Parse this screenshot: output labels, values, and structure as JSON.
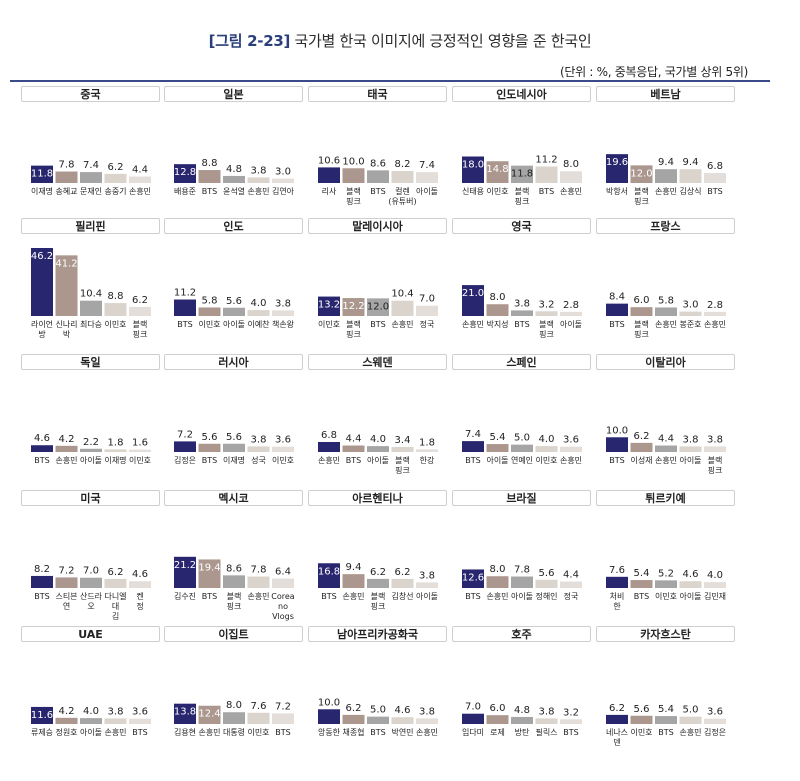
{
  "header": {
    "figure_label": "[그림 2-23]",
    "title": "국가별 한국 이미지에 긍정적인 영향을 준 한국인",
    "unit_note": "(단위 : %, 중복응답, 국가별 상위 5위)"
  },
  "colors": {
    "rank1": "#28266e",
    "rank2": "#ab978d",
    "rank3": "#a5a5a5",
    "rank4": "#dad4cd",
    "rank5": "#e3deda",
    "rule": "#3a4a8a"
  },
  "chart_data": [
    {
      "type": "bar",
      "title": "중국",
      "categories": [
        "이재명",
        "송혜교",
        "문재인",
        "송중기",
        "손흥민"
      ],
      "values": [
        11.8,
        7.8,
        7.4,
        6.2,
        4.4
      ]
    },
    {
      "type": "bar",
      "title": "일본",
      "categories": [
        "배용준",
        "BTS",
        "윤석열",
        "손흥민",
        "김연아"
      ],
      "values": [
        12.8,
        8.8,
        4.8,
        3.8,
        3.0
      ]
    },
    {
      "type": "bar",
      "title": "태국",
      "categories": [
        "리사",
        "블랙 핑크",
        "BTS",
        "컬렌 (유튜버)",
        "아이돌"
      ],
      "values": [
        10.6,
        10.0,
        8.6,
        8.2,
        7.4
      ]
    },
    {
      "type": "bar",
      "title": "인도네시아",
      "categories": [
        "신태용",
        "이민호",
        "블랙 핑크",
        "BTS",
        "손흥민"
      ],
      "values": [
        18.0,
        14.8,
        11.8,
        11.2,
        8.0
      ]
    },
    {
      "type": "bar",
      "title": "베트남",
      "categories": [
        "박항서",
        "블랙 핑크",
        "손흥민",
        "김상식",
        "BTS"
      ],
      "values": [
        19.6,
        12.0,
        9.4,
        9.4,
        6.8
      ]
    },
    {
      "type": "bar",
      "title": "필리핀",
      "categories": [
        "라이언 방",
        "신나리 박",
        "최다승",
        "이민호",
        "블랙 핑크"
      ],
      "values": [
        46.2,
        41.2,
        10.4,
        8.8,
        6.2
      ]
    },
    {
      "type": "bar",
      "title": "인도",
      "categories": [
        "BTS",
        "이민호",
        "아이돌",
        "이예찬",
        "책손왕"
      ],
      "values": [
        11.2,
        5.8,
        5.6,
        4.0,
        3.8
      ]
    },
    {
      "type": "bar",
      "title": "말레이시아",
      "categories": [
        "이민호",
        "블랙 핑크",
        "BTS",
        "손흥민",
        "정국"
      ],
      "values": [
        13.2,
        12.2,
        12.0,
        10.4,
        7.0
      ]
    },
    {
      "type": "bar",
      "title": "영국",
      "categories": [
        "손흥민",
        "박지성",
        "BTS",
        "블랙 핑크",
        "아이돌"
      ],
      "values": [
        21.0,
        8.0,
        3.8,
        3.2,
        2.8
      ]
    },
    {
      "type": "bar",
      "title": "프랑스",
      "categories": [
        "BTS",
        "블랙 핑크",
        "손흥민",
        "봉준호",
        "손흥민"
      ],
      "values": [
        8.4,
        6.0,
        5.8,
        3.0,
        2.8
      ]
    },
    {
      "type": "bar",
      "title": "독일",
      "categories": [
        "BTS",
        "손흥민",
        "아이돌",
        "이재명",
        "이민호"
      ],
      "values": [
        4.6,
        4.2,
        2.2,
        1.8,
        1.6
      ]
    },
    {
      "type": "bar",
      "title": "러시아",
      "categories": [
        "김정은",
        "BTS",
        "이재명",
        "성국",
        "이민호"
      ],
      "values": [
        7.2,
        5.6,
        5.6,
        3.8,
        3.6
      ]
    },
    {
      "type": "bar",
      "title": "스웨덴",
      "categories": [
        "손흥민",
        "BTS",
        "아이돌",
        "블랙 핑크",
        "한강"
      ],
      "values": [
        6.8,
        4.4,
        4.0,
        3.4,
        1.8
      ]
    },
    {
      "type": "bar",
      "title": "스페인",
      "categories": [
        "BTS",
        "아이돌",
        "연예인",
        "이민호",
        "손흥민"
      ],
      "values": [
        7.4,
        5.4,
        5.0,
        4.0,
        3.6
      ]
    },
    {
      "type": "bar",
      "title": "이탈리아",
      "categories": [
        "BTS",
        "이성재",
        "손흥민",
        "아이돌",
        "블랙 핑크"
      ],
      "values": [
        10.0,
        6.2,
        4.4,
        3.8,
        3.8
      ]
    },
    {
      "type": "bar",
      "title": "미국",
      "categories": [
        "BTS",
        "스티븐 연",
        "산드라 오",
        "다니엘 대 김",
        "켄 정"
      ],
      "values": [
        8.2,
        7.2,
        7.0,
        6.2,
        4.6
      ]
    },
    {
      "type": "bar",
      "title": "멕시코",
      "categories": [
        "김수진",
        "BTS",
        "블랙 핑크",
        "손흥민",
        "Corea no Vlogs"
      ],
      "values": [
        21.2,
        19.4,
        8.6,
        7.8,
        6.4
      ]
    },
    {
      "type": "bar",
      "title": "아르헨티나",
      "categories": [
        "BTS",
        "손흥민",
        "블랙 핑크",
        "김창선",
        "아이돌"
      ],
      "values": [
        16.8,
        9.4,
        6.2,
        6.2,
        3.8
      ]
    },
    {
      "type": "bar",
      "title": "브라질",
      "categories": [
        "BTS",
        "손흥민",
        "아이돌",
        "정해인",
        "정국"
      ],
      "values": [
        12.6,
        8.0,
        7.8,
        5.6,
        4.4
      ]
    },
    {
      "type": "bar",
      "title": "튀르키예",
      "categories": [
        "처비 한",
        "BTS",
        "이민호",
        "아이돌",
        "김민재"
      ],
      "values": [
        7.6,
        5.4,
        5.2,
        4.6,
        4.0
      ]
    },
    {
      "type": "bar",
      "title": "UAE",
      "categories": [
        "류제승",
        "정원호",
        "아이돌",
        "손흥민",
        "BTS"
      ],
      "values": [
        11.6,
        4.2,
        4.0,
        3.8,
        3.6
      ]
    },
    {
      "type": "bar",
      "title": "이집트",
      "categories": [
        "김용현",
        "손흥민",
        "대통령",
        "이민호",
        "BTS"
      ],
      "values": [
        13.8,
        12.4,
        8.0,
        7.6,
        7.2
      ]
    },
    {
      "type": "bar",
      "title": "남아프리카공화국",
      "categories": [
        "앙동한",
        "채종협",
        "BTS",
        "박연민",
        "손흥민"
      ],
      "values": [
        10.0,
        6.2,
        5.0,
        4.6,
        3.8
      ]
    },
    {
      "type": "bar",
      "title": "호주",
      "categories": [
        "임다미",
        "로제",
        "방탄",
        "필릭스",
        "BTS"
      ],
      "values": [
        7.0,
        6.0,
        4.8,
        3.8,
        3.2
      ]
    },
    {
      "type": "bar",
      "title": "카자흐스탄",
      "categories": [
        "네나스 덴",
        "이민호",
        "BTS",
        "손흥민",
        "김정은"
      ],
      "values": [
        6.2,
        5.6,
        5.4,
        5.0,
        3.6
      ]
    }
  ]
}
